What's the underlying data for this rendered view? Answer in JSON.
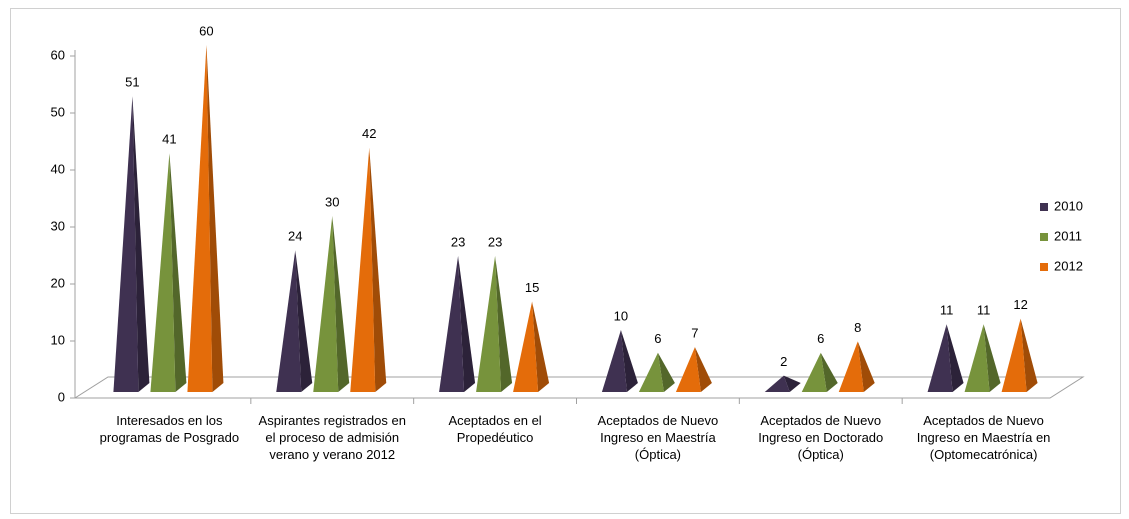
{
  "chart_data": {
    "type": "pyramid",
    "categories": [
      "Interesados en los programas de Posgrado",
      "Aspirantes registrados en el proceso de admisión verano y verano 2012",
      "Aceptados en el Propedéutico",
      "Aceptados de Nuevo Ingreso en Maestría (Óptica)",
      "Aceptados de Nuevo Ingreso en Doctorado (Óptica)",
      "Aceptados de Nuevo Ingreso en Maestría en (Optomecatrónica)"
    ],
    "series": [
      {
        "name": "2010",
        "color": "#3f3151",
        "values": [
          51,
          24,
          23,
          10,
          2,
          11
        ]
      },
      {
        "name": "2011",
        "color": "#77933c",
        "values": [
          41,
          30,
          23,
          6,
          6,
          11
        ]
      },
      {
        "name": "2012",
        "color": "#e46c0a",
        "values": [
          60,
          42,
          15,
          7,
          8,
          12
        ]
      }
    ],
    "ylim": [
      0,
      60
    ],
    "yticks": [
      0,
      10,
      20,
      30,
      40,
      50,
      60
    ],
    "legend": "right"
  }
}
